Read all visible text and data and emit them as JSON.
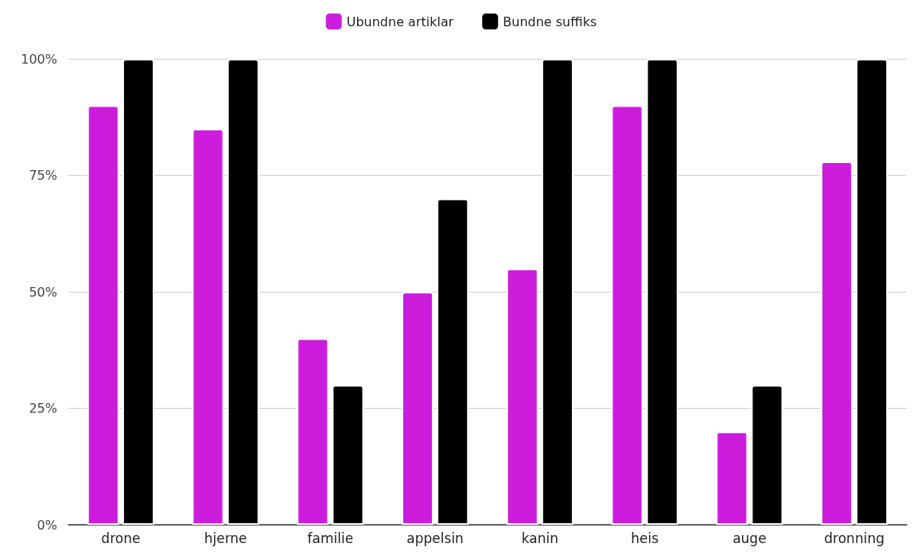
{
  "chart_data": {
    "type": "bar",
    "categories": [
      "drone",
      "hjerne",
      "familie",
      "appelsin",
      "kanin",
      "heis",
      "auge",
      "dronning"
    ],
    "series": [
      {
        "name": "Ubundne artiklar",
        "color": "#cc1ddd",
        "values": [
          90,
          85,
          40,
          50,
          55,
          90,
          20,
          78
        ]
      },
      {
        "name": "Bundne suffiks",
        "color": "#000000",
        "values": [
          100,
          100,
          30,
          70,
          100,
          100,
          30,
          100
        ]
      }
    ],
    "ylim": [
      0,
      100
    ],
    "yticks": [
      {
        "value": 0,
        "label": "0%"
      },
      {
        "value": 25,
        "label": "25%"
      },
      {
        "value": 50,
        "label": "50%"
      },
      {
        "value": 75,
        "label": "75%"
      },
      {
        "value": 100,
        "label": "100%"
      }
    ],
    "grid": "y",
    "legend": "top"
  }
}
